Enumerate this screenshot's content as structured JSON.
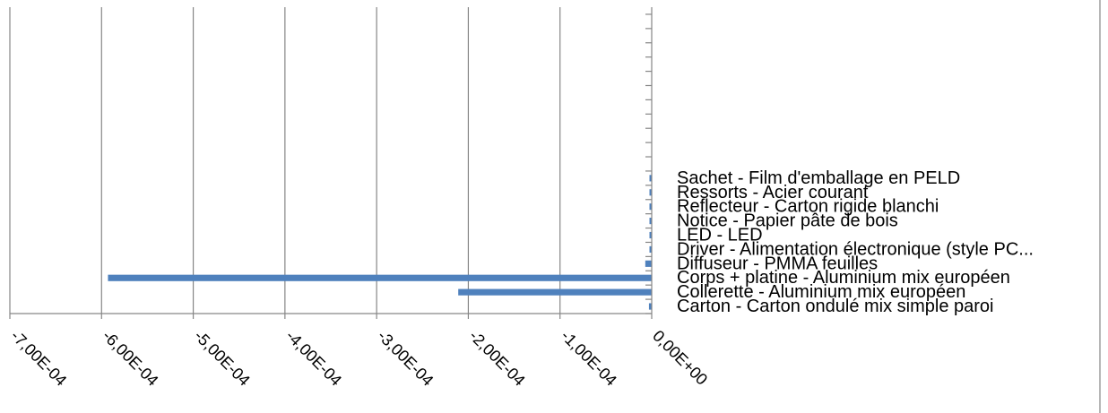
{
  "chart_data": {
    "type": "bar",
    "orientation": "horizontal",
    "categories": [
      "Carton - Carton ondulé mix simple paroi",
      "Collerette - Aluminium mix européen",
      "Corps + platine - Aluminium mix européen",
      "Diffuseur - PMMA feuilles",
      "Driver - Alimentation électronique (style PC...",
      "LED - LED",
      "Notice - Papier pâte de bois",
      "Reflecteur - Carton rigide blanchi",
      "Ressorts - Acier courant",
      "Sachet - Film d'emballage en PELD"
    ],
    "values": [
      -3e-06,
      -0.000211,
      -0.000593,
      -7e-06,
      -2e-07,
      -1e-07,
      -2e-07,
      -2e-07,
      -1e-06,
      -1e-06
    ],
    "xlim": [
      -0.0007,
      0
    ],
    "tick_values": [
      -0.0007,
      -0.0006,
      -0.0005,
      -0.0004,
      -0.0003,
      -0.0002,
      -0.0001,
      0
    ],
    "tick_labels": [
      "-7,00E-04",
      "-6,00E-04",
      "-5,00E-04",
      "-4,00E-04",
      "-3,00E-04",
      "-2,00E-04",
      "-1,00E-04",
      "0,00E+00"
    ],
    "title": "",
    "xlabel": "",
    "ylabel": "",
    "grid": "vertical",
    "colors": {
      "bar": "#4f81bd",
      "grid": "#868686",
      "axis": "#868686",
      "text": "#000000"
    }
  }
}
